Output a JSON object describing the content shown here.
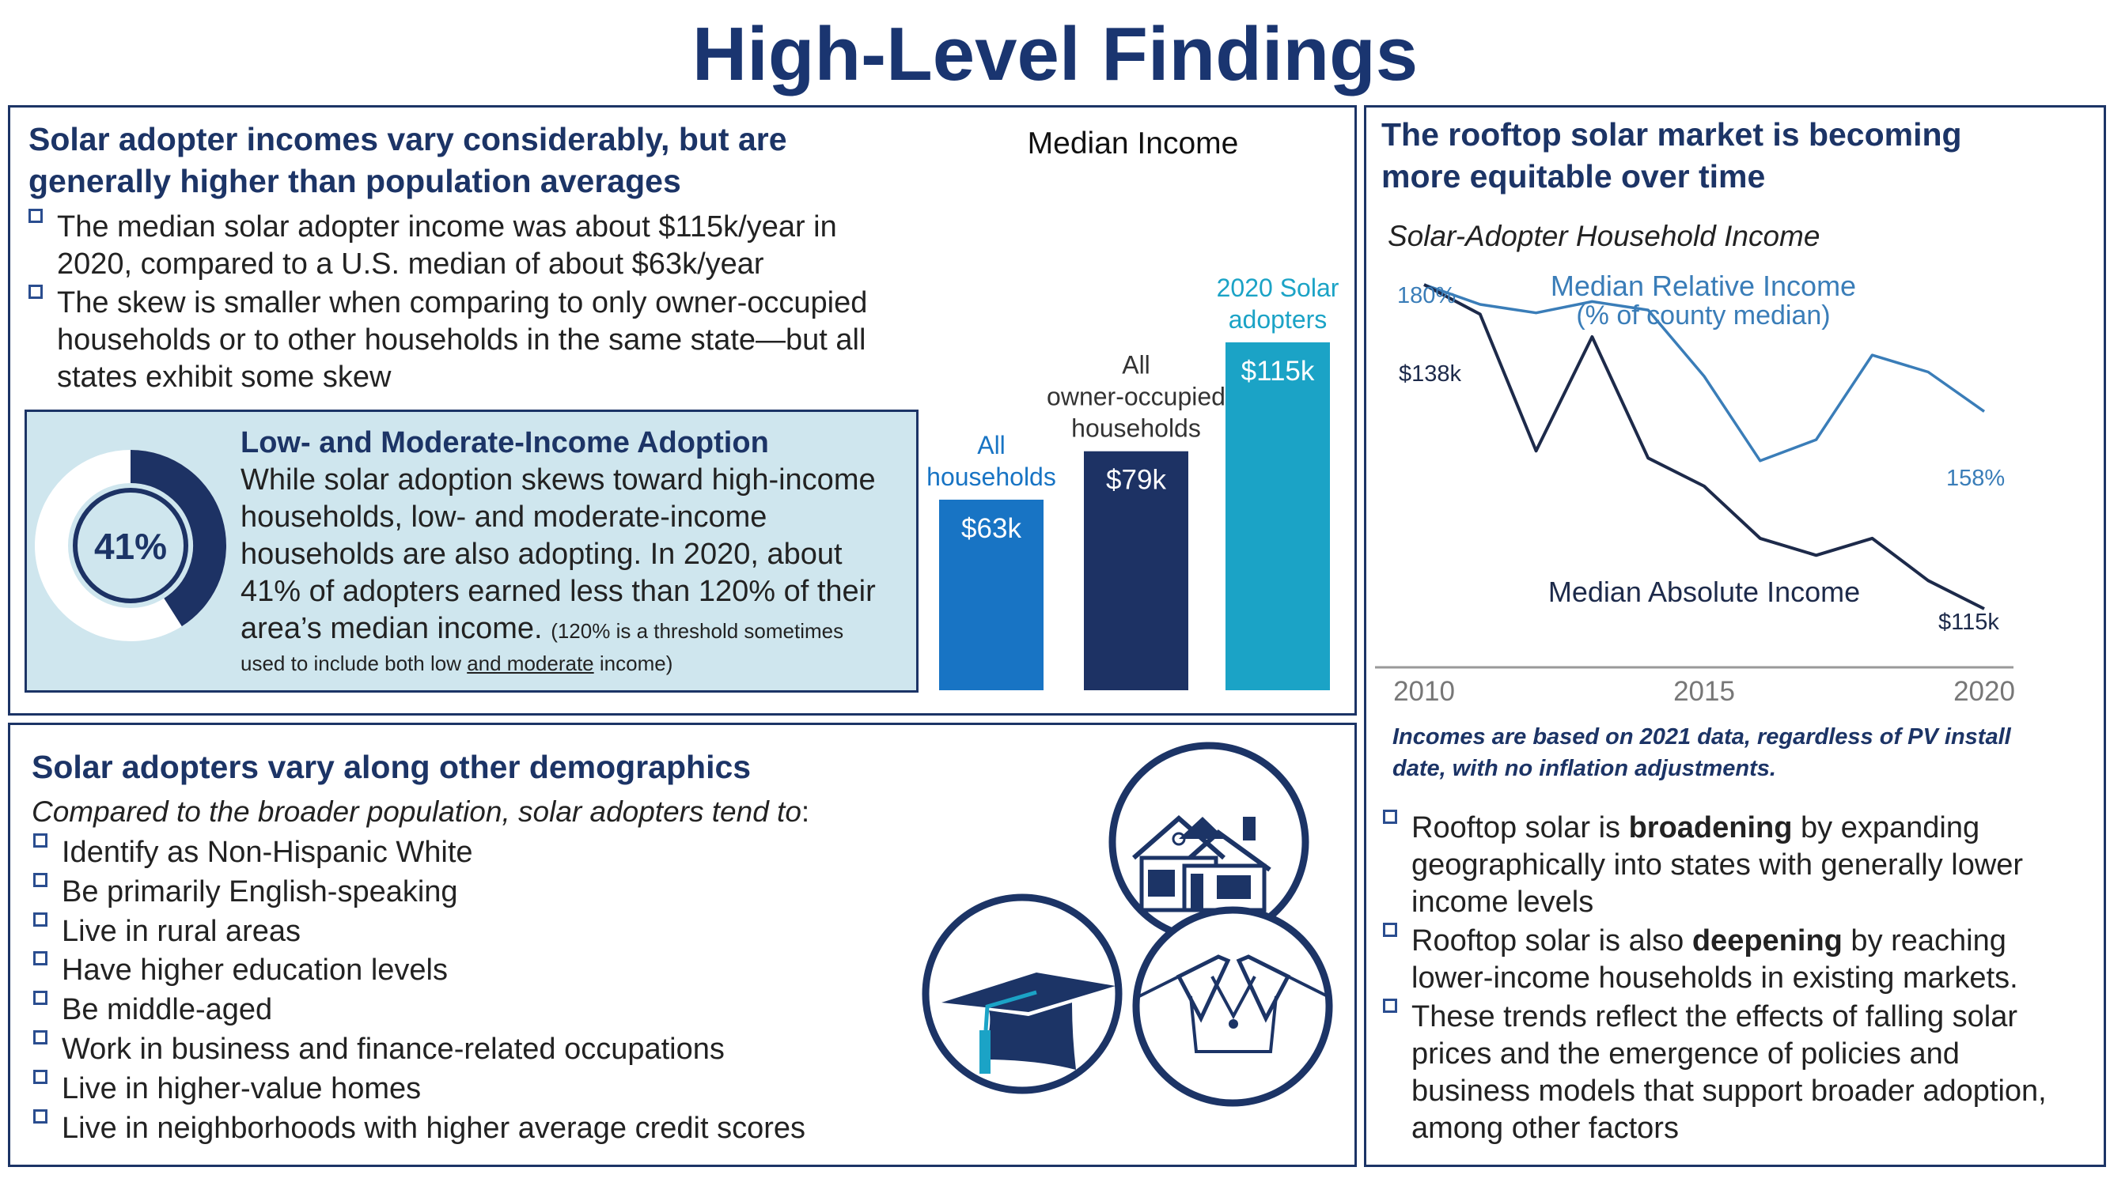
{
  "title": "High-Level Findings",
  "income_panel": {
    "heading_line1": "Solar adopter incomes vary considerably, but are",
    "heading_line2": "generally higher than population averages",
    "bullets": [
      {
        "line1": "The median solar adopter income was about $115k/year in",
        "line2": "2020, compared to a U.S. median of about $63k/year"
      },
      {
        "line1": "The skew is smaller when comparing to only owner-occupied",
        "line2": "households or to other households in the same state—but all",
        "line3": "states exhibit some skew"
      }
    ],
    "lmi": {
      "title": "Low- and Moderate-Income Adoption",
      "lines": [
        "While solar adoption skews toward high-income",
        "households, low- and moderate-income",
        "households are also adopting. In 2020, about",
        "41% of adopters earned less than 120% of their"
      ],
      "last_line": "area’s median income.",
      "note_part1": "(120% is a threshold sometimes",
      "note_part2": "used to include both low ",
      "note_underlined": "and moderate",
      "note_part3": " income)",
      "percent_label": "41%",
      "percent_value": 41
    }
  },
  "chart_data": [
    {
      "type": "bar",
      "title": "Median Income",
      "categories": [
        "All households",
        "All owner-occupied households",
        "2020 Solar adopters"
      ],
      "category_labels": [
        [
          "All",
          "households"
        ],
        [
          "All",
          "owner-occupied",
          "households"
        ],
        [
          "2020 Solar",
          "adopters"
        ]
      ],
      "values": [
        63,
        79,
        115
      ],
      "value_labels": [
        "$63k",
        "$79k",
        "$115k"
      ],
      "colors": [
        "#1874c4",
        "#1d3264",
        "#1ba3c6"
      ],
      "ylim": [
        0,
        115
      ],
      "xlabel": "",
      "ylabel": ""
    },
    {
      "type": "line",
      "title": "Solar-Adopter Household Income",
      "x": [
        2010,
        2011,
        2012,
        2013,
        2014,
        2015,
        2016,
        2017,
        2018,
        2019,
        2020
      ],
      "xticks": [
        "2010",
        "2015",
        "2020"
      ],
      "series": [
        {
          "name": "Median Relative Income",
          "label_line1": "Median Relative Income",
          "label_line2": "(% of county median)",
          "color": "#3a7db8",
          "values": [
            180,
            166,
            160,
            168,
            162,
            115,
            55,
            70,
            130,
            118,
            90
          ],
          "start_label": "180%",
          "end_label": "158%"
        },
        {
          "name": "Median Absolute Income",
          "label_line1": "Median Absolute Income",
          "color": "#1d2a4a",
          "values": [
            180,
            159,
            62,
            143,
            57,
            37,
            0,
            -12,
            0,
            -30,
            -50
          ],
          "start_label": "$138k",
          "end_label": "$115k"
        }
      ],
      "note": "Values plotted on a shared relative scale as read from the figure"
    }
  ],
  "market_panel": {
    "heading_line1": "The rooftop solar market is becoming",
    "heading_line2": "more equitable over time",
    "chart_subtitle": "Solar-Adopter Household Income",
    "note_line1": "Incomes are based on 2021 data, regardless of PV install",
    "note_line2": "date, with no inflation adjustments.",
    "bullets": [
      {
        "pre": "Rooftop solar is ",
        "bold": "broadening",
        "post": " by expanding",
        "line2": "geographically into states with generally lower",
        "line3": "income levels"
      },
      {
        "pre": "Rooftop solar is also ",
        "bold": "deepening",
        "post": " by reaching",
        "line2": "lower-income households in existing markets."
      },
      {
        "line1": "These trends reflect the effects of falling solar",
        "line2": "prices and the emergence of policies and",
        "line3": "business models that support broader adoption,",
        "line4": "among other factors"
      }
    ]
  },
  "demographics_panel": {
    "heading": "Solar adopters vary along other demographics",
    "intro": "Compared to the broader population, solar adopters tend to",
    "intro_colon": ":",
    "bullets": [
      "Identify as Non-Hispanic White",
      "Be primarily English-speaking",
      "Live in rural areas",
      "Have higher education levels",
      "Be middle-aged",
      "Work in business and finance-related occupations",
      "Live in higher-value homes",
      "Live in neighborhoods with higher average credit scores"
    ],
    "icons": [
      "house-icon",
      "graduation-cap-icon",
      "shirt-collar-icon"
    ]
  },
  "colors": {
    "navy": "#1c3466",
    "teal": "#1ba3c6",
    "blue": "#1874c4",
    "light_box": "#cfe6ee"
  }
}
